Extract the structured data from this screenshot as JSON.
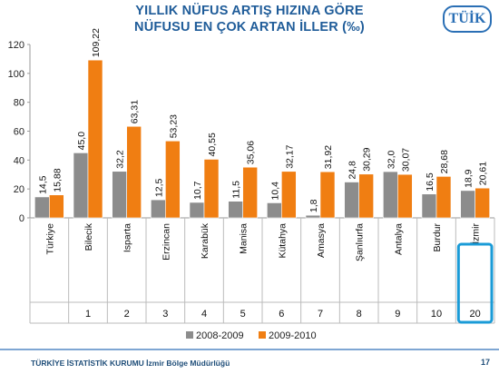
{
  "slide": {
    "title_line1": "YILLIK NÜFUS ARTIŞ HIZINA GÖRE",
    "title_line2": "NÜFUSU EN ÇOK ARTAN İLLER (‰)",
    "logo": "TÜİK",
    "footer": "TÜRKİYE İSTATİSTİK KURUMU İzmir Bölge Müdürlüğü",
    "page_number": "17"
  },
  "chart_data": {
    "type": "bar",
    "title": "YILLIK NÜFUS ARTIŞ HIZINA GÖRE NÜFUSU EN ÇOK ARTAN İLLER (‰)",
    "xlabel": "",
    "ylabel": "",
    "ylim": [
      0,
      120
    ],
    "yticks": [
      "0",
      "20",
      "40",
      "60",
      "80",
      "100",
      "120"
    ],
    "categories": [
      "Türkiye",
      "Bilecik",
      "Isparta",
      "Erzincan",
      "Karabük",
      "Manisa",
      "Kütahya",
      "Amasya",
      "Şanlıurfa",
      "Antalya",
      "Burdur",
      "İzmir"
    ],
    "ranks": [
      "",
      "1",
      "2",
      "3",
      "4",
      "5",
      "6",
      "7",
      "8",
      "9",
      "10",
      "20"
    ],
    "highlighted_category": "İzmir",
    "grid": false,
    "legend_position": "bottom",
    "series": [
      {
        "name": "2008-2009",
        "color": "#8c8c8c",
        "values": [
          14.5,
          45.0,
          32.2,
          12.5,
          10.7,
          11.5,
          10.4,
          1.8,
          24.8,
          32.0,
          16.5,
          18.9
        ],
        "labels": [
          "14,5",
          "45,0",
          "32,2",
          "12,5",
          "10,7",
          "11,5",
          "10,4",
          "1,8",
          "24,8",
          "32,0",
          "16,5",
          "18,9"
        ]
      },
      {
        "name": "2009-2010",
        "color": "#f07e12",
        "values": [
          15.88,
          109.22,
          63.31,
          53.23,
          40.55,
          35.06,
          32.17,
          31.92,
          30.29,
          30.07,
          28.68,
          20.61
        ],
        "labels": [
          "15,88",
          "109,22",
          "63,31",
          "53,23",
          "40,55",
          "35,06",
          "32,17",
          "31,92",
          "30,29",
          "30,07",
          "28,68",
          "20,61"
        ]
      }
    ]
  }
}
